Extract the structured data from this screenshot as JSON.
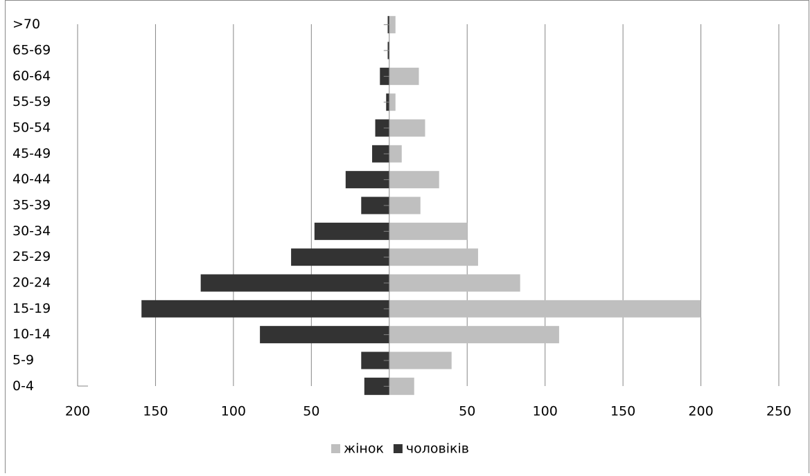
{
  "chart_data": {
    "type": "bar",
    "orientation": "horizontal",
    "stacked": true,
    "categories": [
      "0-4",
      "5-9",
      "10-14",
      "15-19",
      "20-24",
      "25-29",
      "30-34",
      "35-39",
      "40-44",
      "45-49",
      "50-54",
      "55-59",
      "60-64",
      "65-69",
      ">70"
    ],
    "series": [
      {
        "name": "жінок",
        "color": "#bfbfbf",
        "values": [
          16,
          40,
          109,
          200,
          84,
          57,
          50,
          20,
          32,
          8,
          23,
          4,
          19,
          0,
          4
        ]
      },
      {
        "name": "чоловіків",
        "color": "#333333",
        "values": [
          -16,
          -18,
          -83,
          -159,
          -121,
          -63,
          -48,
          -18,
          -28,
          -11,
          -9,
          -2,
          -6,
          -1,
          -1
        ]
      }
    ],
    "xlim": [
      -200,
      250
    ],
    "xticks": [
      {
        "value": -200,
        "label": "200"
      },
      {
        "value": -150,
        "label": "150"
      },
      {
        "value": -100,
        "label": "100"
      },
      {
        "value": -50,
        "label": "50"
      },
      50,
      100,
      150,
      200,
      250
    ],
    "grid": true,
    "legend": "bottom"
  }
}
